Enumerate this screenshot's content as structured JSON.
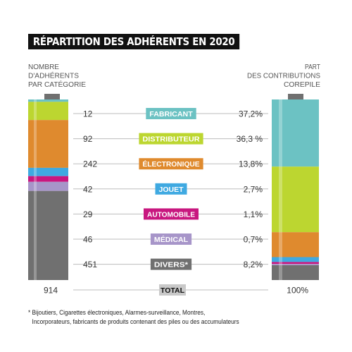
{
  "title": "RÉPARTITION DES ADHÉRENTS EN 2020",
  "left_axis_label": [
    "NOMBRE",
    "D'ADHÉRENTS",
    "PAR CATÉGORIE"
  ],
  "right_axis_label": [
    "PART",
    "DES CONTRIBUTIONS",
    "COREPILE"
  ],
  "total_label": "TOTAL",
  "total_members": "914",
  "total_share": "100%",
  "footnote": [
    "* Bijoutiers, Cigarettes électroniques, Alarmes-surveillance, Montres,",
    "Incorporateurs, fabricants de produits contenant des piles ou des accumulateurs"
  ],
  "chart_data": {
    "type": "table",
    "categories": [
      "FABRICANT",
      "DISTRIBUTEUR",
      "ÉLECTRONIQUE",
      "JOUET",
      "AUTOMOBILE",
      "MÉDICAL",
      "DIVERS*"
    ],
    "members": [
      12,
      92,
      242,
      42,
      29,
      46,
      451
    ],
    "member_labels": [
      "12",
      "92",
      "242",
      "42",
      "29",
      "46",
      "451"
    ],
    "shares": [
      37.2,
      36.3,
      13.8,
      2.7,
      1.1,
      0.7,
      8.2
    ],
    "share_labels": [
      "37,2%",
      "36,3 %",
      "13,8%",
      "2,7%",
      "1,1%",
      "0,7%",
      "8,2%"
    ],
    "colors": [
      "#6cc2c3",
      "#bcd630",
      "#df8a2e",
      "#3fa9e1",
      "#c8177f",
      "#a795c9",
      "#707070"
    ],
    "total": 914
  }
}
